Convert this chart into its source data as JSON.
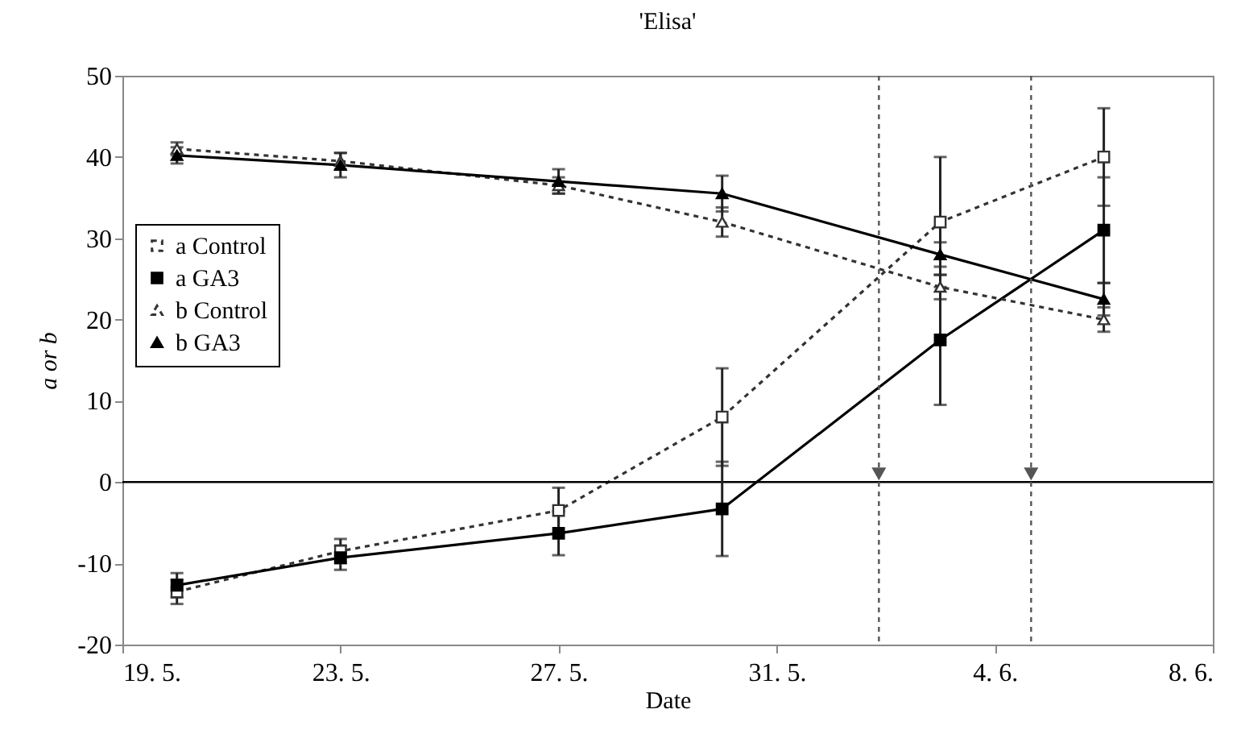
{
  "chart_data": {
    "type": "line",
    "title": "'Elisa'",
    "xlabel": "Date",
    "ylabel": "a or b",
    "x": [
      "--05-20",
      "--05-23",
      "--05-27",
      "--05-30",
      "--06-03",
      "--06-06"
    ],
    "series": [
      {
        "name": "a Control",
        "color": "#333333",
        "line_style": "dashed",
        "marker": "square",
        "values": [
          -13.5,
          -8.5,
          -3.5,
          8,
          32,
          40
        ],
        "errors": [
          1.5,
          1.5,
          2.8,
          6,
          8,
          6
        ]
      },
      {
        "name": "a GA3",
        "color": "#000000",
        "line_style": "solid",
        "marker": "square",
        "values": [
          -12.7,
          -9.3,
          -6.3,
          -3.3,
          17.5,
          31
        ],
        "errors": [
          1.5,
          1.5,
          2.7,
          5.8,
          8,
          6.5
        ]
      },
      {
        "name": "b Control",
        "color": "#333333",
        "line_style": "dashed",
        "marker": "triangle",
        "values": [
          41,
          39.5,
          36.5,
          32,
          24,
          20
        ],
        "errors": [
          0.8,
          1,
          1,
          1.8,
          1.5,
          1.5
        ]
      },
      {
        "name": "b GA3",
        "color": "#000000",
        "line_style": "solid",
        "marker": "triangle",
        "values": [
          40.2,
          39,
          37,
          35.5,
          28,
          22.5
        ],
        "errors": [
          1,
          1.5,
          1.5,
          2.2,
          1.5,
          2
        ]
      }
    ],
    "xlim": [
      "--05-19",
      "--06-08"
    ],
    "xticks": [
      {
        "value": "--05-19",
        "label": "19. 5."
      },
      {
        "value": "--05-23",
        "label": "23. 5."
      },
      {
        "value": "--05-27",
        "label": "27. 5."
      },
      {
        "value": "--05-31",
        "label": "31. 5."
      },
      {
        "value": "--06-04",
        "label": "4. 6."
      },
      {
        "value": "--06-08",
        "label": "8. 6."
      }
    ],
    "ylim": [
      -20,
      50
    ],
    "yticks": [
      -20,
      -10,
      0,
      10,
      20,
      30,
      40,
      50
    ],
    "ref_lines": [
      {
        "axis": "y",
        "value": 0,
        "color": "#000000",
        "line_style": "solid"
      },
      {
        "axis": "x",
        "value": "--06-01T21:00",
        "color": "#555555",
        "line_style": "dashed"
      },
      {
        "axis": "x",
        "value": "--06-04T16:00",
        "color": "#555555",
        "line_style": "dashed"
      }
    ],
    "legend": "left",
    "grid": false
  }
}
